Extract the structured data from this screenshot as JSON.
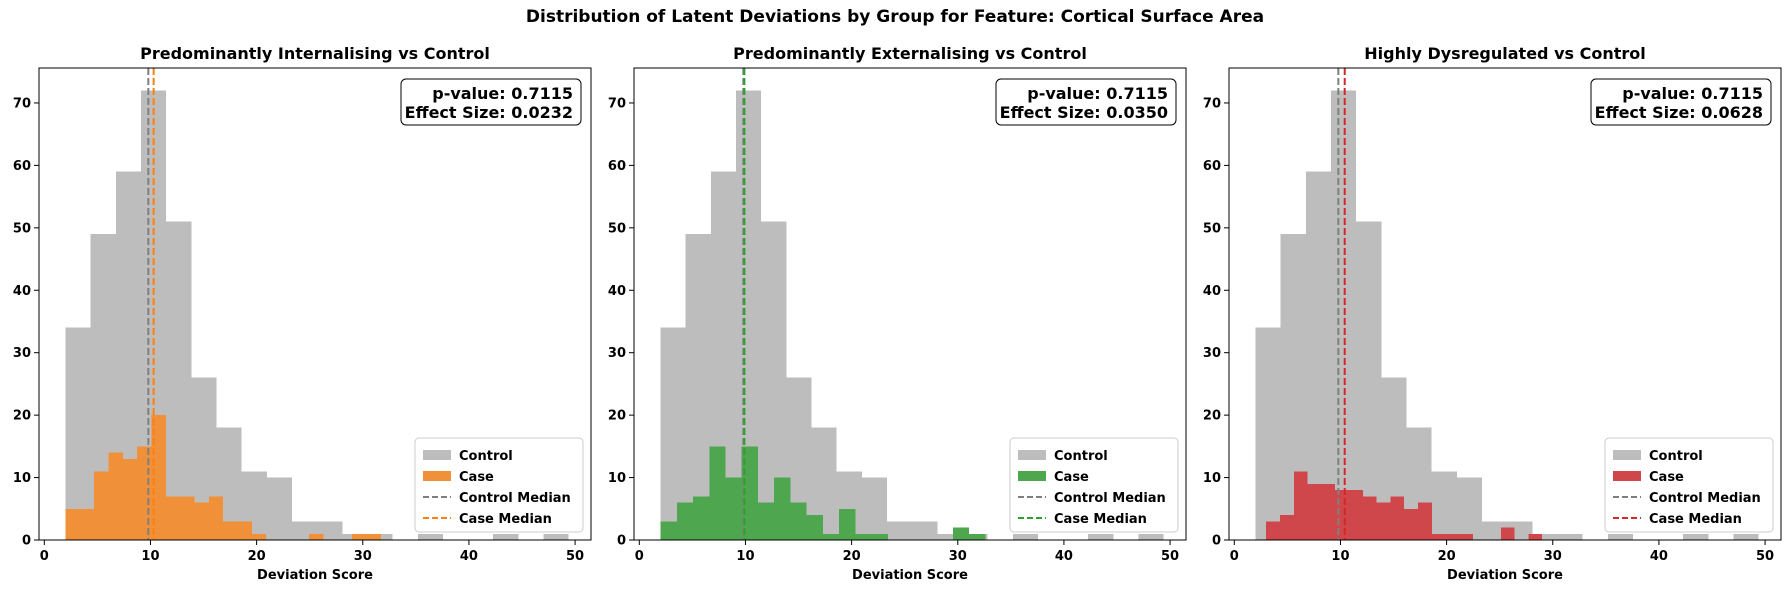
{
  "figure_title": "Distribution of Latent Deviations by Group for Feature: Cortical Surface Area",
  "chart_data": [
    {
      "type": "histogram",
      "title": "Predominantly Internalising vs Control",
      "xlabel": "Deviation Score",
      "ylabel": "",
      "xlim": [
        -0.5,
        51.5
      ],
      "ylim": [
        0,
        75.6
      ],
      "xticks": [
        0,
        10,
        20,
        30,
        40,
        50
      ],
      "yticks": [
        0,
        10,
        20,
        30,
        40,
        50,
        60,
        70
      ],
      "annotation": [
        "p-value: 0.7115",
        "Effect Size: 0.0232"
      ],
      "legend_position": "lower-right",
      "series": [
        {
          "name": "Control",
          "kind": "bars",
          "color": "#bdbdbd",
          "bin_edges": [
            2.0,
            4.37,
            6.74,
            9.11,
            11.48,
            13.85,
            16.22,
            18.59,
            20.96,
            23.33,
            25.7,
            28.07,
            30.44,
            32.81,
            35.18,
            37.55,
            39.92,
            42.29,
            44.66,
            47.03,
            49.4
          ],
          "counts": [
            34,
            49,
            59,
            72,
            51,
            26,
            18,
            11,
            10,
            3,
            3,
            1,
            1,
            0,
            1,
            0,
            0,
            1,
            0,
            1
          ]
        },
        {
          "name": "Case",
          "kind": "bars",
          "color": "#f0913a",
          "bin_edges": [
            2.0,
            3.35,
            4.7,
            6.05,
            7.4,
            8.75,
            10.1,
            11.45,
            12.8,
            14.15,
            15.5,
            16.85,
            18.2,
            19.55,
            20.9,
            22.25,
            23.6,
            24.95,
            26.3,
            27.65,
            29.0,
            30.35,
            31.7,
            33.05
          ],
          "counts": [
            5,
            5,
            11,
            14,
            13,
            15,
            20,
            7,
            7,
            6,
            7,
            3,
            3,
            1,
            0,
            0,
            0,
            1,
            0,
            0,
            1,
            1,
            0
          ]
        },
        {
          "name": "Control Median",
          "kind": "vline",
          "x": 9.8,
          "color": "#7f7f7f"
        },
        {
          "name": "Case Median",
          "kind": "vline",
          "x": 10.3,
          "color": "#ff7f0e"
        }
      ]
    },
    {
      "type": "histogram",
      "title": "Predominantly Externalising vs Control",
      "xlabel": "Deviation Score",
      "ylabel": "",
      "xlim": [
        -0.5,
        51.5
      ],
      "ylim": [
        0,
        75.6
      ],
      "xticks": [
        0,
        10,
        20,
        30,
        40,
        50
      ],
      "yticks": [
        0,
        10,
        20,
        30,
        40,
        50,
        60,
        70
      ],
      "annotation": [
        "p-value: 0.7115",
        "Effect Size: 0.0350"
      ],
      "legend_position": "lower-right",
      "series": [
        {
          "name": "Control",
          "kind": "bars",
          "color": "#bdbdbd",
          "bin_edges": [
            2.0,
            4.37,
            6.74,
            9.11,
            11.48,
            13.85,
            16.22,
            18.59,
            20.96,
            23.33,
            25.7,
            28.07,
            30.44,
            32.81,
            35.18,
            37.55,
            39.92,
            42.29,
            44.66,
            47.03,
            49.4
          ],
          "counts": [
            34,
            49,
            59,
            72,
            51,
            26,
            18,
            11,
            10,
            3,
            3,
            1,
            1,
            0,
            1,
            0,
            0,
            1,
            0,
            1
          ]
        },
        {
          "name": "Case",
          "kind": "bars",
          "color": "#4ea64e",
          "bin_edges": [
            2.0,
            3.53,
            5.06,
            6.59,
            8.12,
            9.65,
            11.18,
            12.71,
            14.24,
            15.77,
            17.3,
            18.83,
            20.36,
            21.89,
            23.42,
            24.95,
            26.48,
            28.01,
            29.54,
            31.07,
            32.6
          ],
          "counts": [
            3,
            6,
            7,
            15,
            10,
            15,
            6,
            10,
            6,
            4,
            1,
            5,
            1,
            1,
            0,
            0,
            0,
            0,
            2,
            1
          ]
        },
        {
          "name": "Control Median",
          "kind": "vline",
          "x": 9.8,
          "color": "#7f7f7f"
        },
        {
          "name": "Case Median",
          "kind": "vline",
          "x": 9.9,
          "color": "#2ca02c"
        }
      ]
    },
    {
      "type": "histogram",
      "title": "Highly Dysregulated vs Control",
      "xlabel": "Deviation Score",
      "ylabel": "",
      "xlim": [
        -0.5,
        51.5
      ],
      "ylim": [
        0,
        75.6
      ],
      "xticks": [
        0,
        10,
        20,
        30,
        40,
        50
      ],
      "yticks": [
        0,
        10,
        20,
        30,
        40,
        50,
        60,
        70
      ],
      "annotation": [
        "p-value: 0.7115",
        "Effect Size: 0.0628"
      ],
      "legend_position": "lower-right",
      "series": [
        {
          "name": "Control",
          "kind": "bars",
          "color": "#bdbdbd",
          "bin_edges": [
            2.0,
            4.37,
            6.74,
            9.11,
            11.48,
            13.85,
            16.22,
            18.59,
            20.96,
            23.33,
            25.7,
            28.07,
            30.44,
            32.81,
            35.18,
            37.55,
            39.92,
            42.29,
            44.66,
            47.03,
            49.4
          ],
          "counts": [
            34,
            49,
            59,
            72,
            51,
            26,
            18,
            11,
            10,
            3,
            3,
            1,
            1,
            0,
            1,
            0,
            0,
            1,
            0,
            1
          ]
        },
        {
          "name": "Case",
          "kind": "bars",
          "color": "#d0474b",
          "bin_edges": [
            3.0,
            4.3,
            5.6,
            6.9,
            8.2,
            9.5,
            10.8,
            12.1,
            13.4,
            14.7,
            16.0,
            17.3,
            18.6,
            19.9,
            21.2,
            22.5,
            23.8,
            25.1,
            26.4,
            27.7,
            29.0
          ],
          "counts": [
            3,
            4,
            11,
            9,
            9,
            8,
            8,
            7,
            6,
            7,
            5,
            6,
            1,
            1,
            1,
            0,
            0,
            2,
            0,
            1
          ]
        },
        {
          "name": "Control Median",
          "kind": "vline",
          "x": 9.8,
          "color": "#7f7f7f"
        },
        {
          "name": "Case Median",
          "kind": "vline",
          "x": 10.4,
          "color": "#d62728"
        }
      ]
    }
  ]
}
